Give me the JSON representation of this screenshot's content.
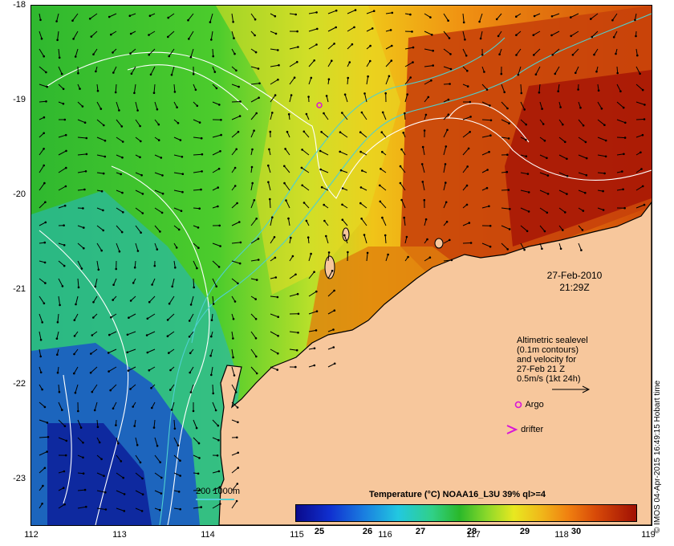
{
  "map": {
    "y_axis_ticks": [
      "-18",
      "-19",
      "-20",
      "-21",
      "-22",
      "-23"
    ],
    "x_axis_ticks": [
      "112",
      "113",
      "114",
      "115",
      "116",
      "117",
      "118",
      "119"
    ],
    "land_color": "#f7c79c"
  },
  "date": {
    "day": "27-Feb-2010",
    "time": "21:29Z"
  },
  "legend": {
    "line1": "Altimetric sealevel",
    "line2": "(0.1m contours)",
    "line3": "and velocity for",
    "line4": "27-Feb 21 Z",
    "line5": "0.5m/s (1kt 24h)",
    "argo_label": "Argo",
    "drifter_label": "drifter",
    "bathy_label": "200  1000m"
  },
  "colorbar": {
    "title": "Temperature (°C) NOAA16_L3U 39% ql>=4",
    "labels": [
      "25",
      "26",
      "27",
      "28",
      "29",
      "30"
    ]
  },
  "credit": "© IMOS 04-Apr-2015 16:49:15 Hobart time"
}
